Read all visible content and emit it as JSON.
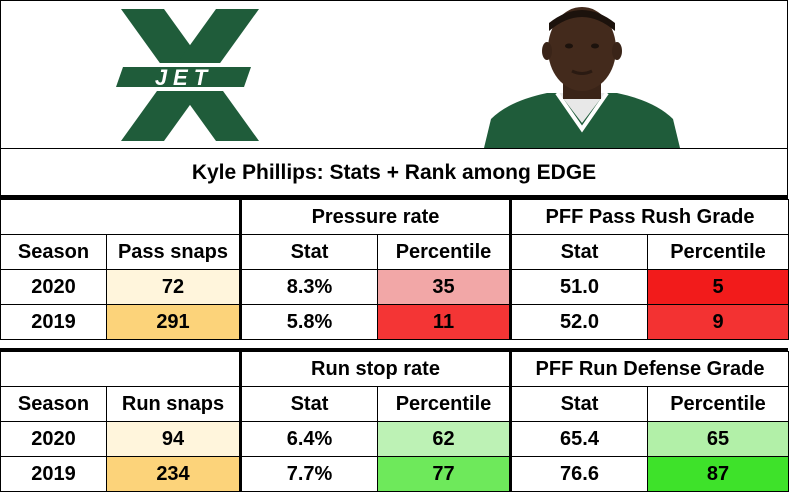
{
  "logo": {
    "letter": "X",
    "wordmark": "JET",
    "color": "#1f5c3a"
  },
  "title": "Kyle Phillips: Stats + Rank among EDGE",
  "pass": {
    "group1": "Pressure rate",
    "group2": "PFF Pass Rush Grade",
    "headers": {
      "season": "Season",
      "snaps": "Pass snaps",
      "stat1": "Stat",
      "pct1": "Percentile",
      "stat2": "Stat",
      "pct2": "Percentile"
    },
    "rows": [
      {
        "season": "2020",
        "snaps": "72",
        "stat1": "8.3%",
        "pct1": "35",
        "stat2": "51.0",
        "pct2": "5",
        "snaps_color": "#fff5dc",
        "pct1_color": "#f2a7a7",
        "pct2_color": "#f21b1b"
      },
      {
        "season": "2019",
        "snaps": "291",
        "stat1": "5.8%",
        "pct1": "11",
        "stat2": "52.0",
        "pct2": "9",
        "snaps_color": "#fcd37a",
        "pct1_color": "#f43535",
        "pct2_color": "#f33232"
      }
    ]
  },
  "run": {
    "group1": "Run stop rate",
    "group2": "PFF Run Defense Grade",
    "headers": {
      "season": "Season",
      "snaps": "Run snaps",
      "stat1": "Stat",
      "pct1": "Percentile",
      "stat2": "Stat",
      "pct2": "Percentile"
    },
    "rows": [
      {
        "season": "2020",
        "snaps": "94",
        "stat1": "6.4%",
        "pct1": "62",
        "stat2": "65.4",
        "pct2": "65",
        "snaps_color": "#fff5dc",
        "pct1_color": "#bdf2b5",
        "pct2_color": "#b2f0a8"
      },
      {
        "season": "2019",
        "snaps": "234",
        "stat1": "7.7%",
        "pct1": "77",
        "stat2": "76.6",
        "pct2": "87",
        "snaps_color": "#fcd37a",
        "pct1_color": "#6ee95b",
        "pct2_color": "#3ee22a"
      }
    ]
  }
}
